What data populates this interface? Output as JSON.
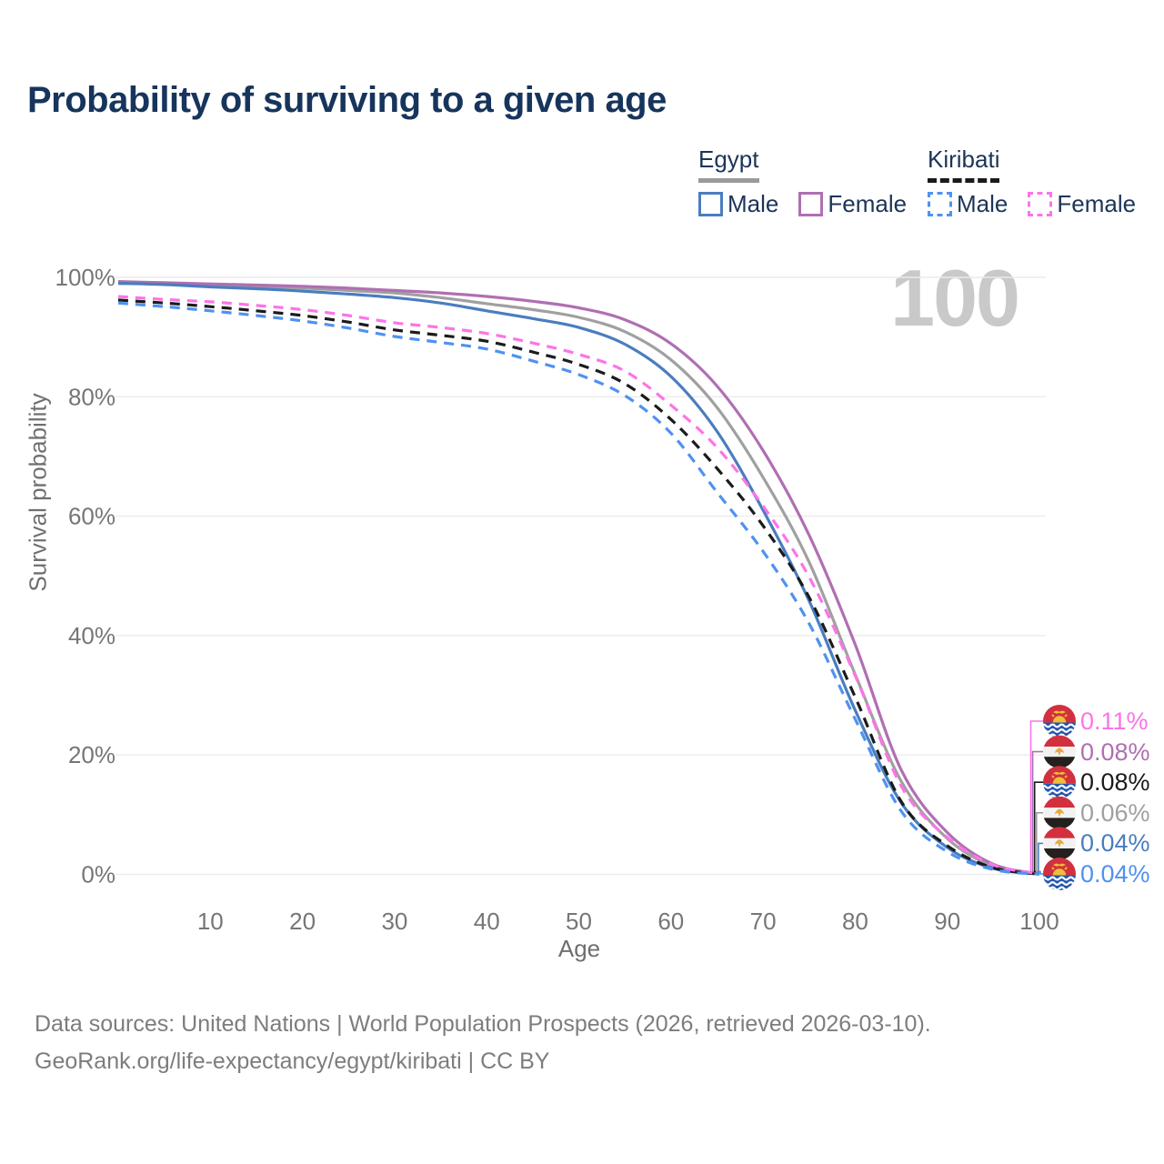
{
  "title": "Probability of surviving to a given age",
  "watermark": "100",
  "legend": {
    "groups": [
      {
        "country": "Egypt",
        "swatch_color": "#9a9a9a",
        "dashed": false,
        "items": [
          {
            "label": "Male",
            "color": "#4a7dbf",
            "dashed": false
          },
          {
            "label": "Female",
            "color": "#b06fb2",
            "dashed": false
          }
        ]
      },
      {
        "country": "Kiribati",
        "swatch_color": "#1a1a1a",
        "dashed": true,
        "items": [
          {
            "label": "Male",
            "color": "#4f92f0",
            "dashed": true
          },
          {
            "label": "Female",
            "color": "#fc74e8",
            "dashed": true
          }
        ]
      }
    ]
  },
  "chart_data": {
    "type": "line",
    "title": "Probability of surviving to a given age",
    "xlabel": "Age",
    "ylabel": "Survival probability",
    "xlim": [
      0,
      100
    ],
    "ylim": [
      0,
      100
    ],
    "grid": "horizontal",
    "x_ticks": [
      10,
      20,
      30,
      40,
      50,
      60,
      70,
      80,
      90,
      100
    ],
    "y_ticks": [
      "0%",
      "20%",
      "40%",
      "60%",
      "80%",
      "100%"
    ],
    "highlighted_age": "100",
    "x": [
      0,
      5,
      10,
      15,
      20,
      25,
      30,
      35,
      40,
      45,
      50,
      55,
      60,
      65,
      70,
      75,
      80,
      85,
      90,
      95,
      100
    ],
    "series": [
      {
        "name": "Egypt",
        "sex": "All",
        "color": "#a0a0a0",
        "dashed": false,
        "end_label": "0.06%",
        "values": [
          99.2,
          99.0,
          98.7,
          98.5,
          98.2,
          97.8,
          97.4,
          96.6,
          95.6,
          94.6,
          93.3,
          90.9,
          86.2,
          78.2,
          66.5,
          52.3,
          33.5,
          15.6,
          6.0,
          1.4,
          0.06
        ]
      },
      {
        "name": "Egypt",
        "sex": "Female",
        "color": "#b06fb2",
        "dashed": false,
        "end_label": "0.08%",
        "values": [
          99.3,
          99.1,
          98.9,
          98.7,
          98.5,
          98.2,
          97.8,
          97.4,
          96.8,
          96.0,
          94.9,
          92.9,
          88.9,
          81.8,
          71.0,
          56.8,
          38.5,
          17.5,
          7.0,
          1.7,
          0.08
        ]
      },
      {
        "name": "Egypt",
        "sex": "Male",
        "color": "#4a7dbf",
        "dashed": false,
        "end_label": "0.04%",
        "values": [
          99.0,
          98.8,
          98.4,
          98.1,
          97.7,
          97.2,
          96.6,
          95.7,
          94.4,
          93.1,
          91.6,
          88.8,
          83.4,
          74.2,
          61.0,
          45.8,
          27.5,
          12.0,
          4.5,
          1.0,
          0.04
        ]
      },
      {
        "name": "Kiribati",
        "sex": "All",
        "color": "#1b1b1b",
        "dashed": true,
        "end_label": "0.08%",
        "values": [
          96.2,
          95.7,
          95.1,
          94.4,
          93.6,
          92.5,
          91.2,
          90.3,
          89.3,
          87.5,
          85.4,
          82.2,
          76.2,
          68.0,
          58.4,
          46.4,
          29.7,
          12.2,
          4.8,
          1.1,
          0.08
        ]
      },
      {
        "name": "Kiribati",
        "sex": "Female",
        "color": "#fc74e8",
        "dashed": true,
        "end_label": "0.11%",
        "values": [
          96.8,
          96.3,
          95.9,
          95.3,
          94.6,
          93.6,
          92.4,
          91.6,
          90.6,
          89.0,
          87.1,
          84.3,
          78.6,
          71.5,
          61.7,
          49.8,
          33.3,
          14.8,
          6.2,
          1.6,
          0.11
        ]
      },
      {
        "name": "Kiribati",
        "sex": "Male",
        "color": "#4f92f0",
        "dashed": true,
        "end_label": "0.04%",
        "values": [
          95.7,
          95.1,
          94.4,
          93.6,
          92.7,
          91.5,
          90.1,
          89.1,
          88.0,
          86.0,
          83.7,
          80.2,
          73.9,
          64.0,
          54.1,
          42.0,
          26.0,
          10.6,
          3.8,
          0.8,
          0.04
        ]
      }
    ],
    "end_labels": [
      {
        "value": "0.11%",
        "flag": "kiribati",
        "color": "#fc74e8"
      },
      {
        "value": "0.08%",
        "flag": "egypt",
        "color": "#b06fb2"
      },
      {
        "value": "0.08%",
        "flag": "kiribati",
        "color": "#1b1b1b"
      },
      {
        "value": "0.06%",
        "flag": "egypt",
        "color": "#a0a0a0"
      },
      {
        "value": "0.04%",
        "flag": "egypt",
        "color": "#4a7dbf"
      },
      {
        "value": "0.04%",
        "flag": "kiribati",
        "color": "#4f92f0"
      }
    ]
  },
  "footer": {
    "line1": "Data sources: United Nations | World Population Prospects (2026, retrieved 2026-03-10).",
    "line2": "GeoRank.org/life-expectancy/egypt/kiribati | CC BY"
  }
}
